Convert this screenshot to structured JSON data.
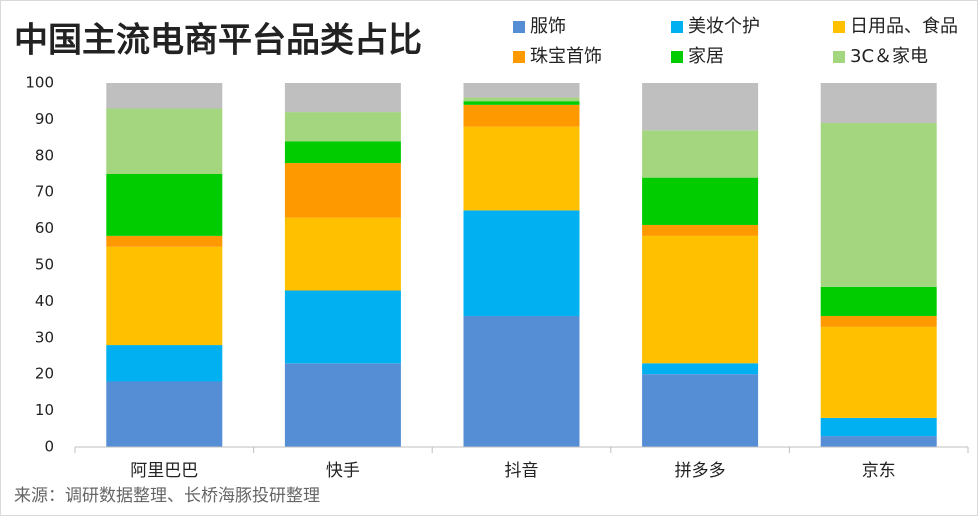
{
  "chart_data": {
    "type": "stacked_bar",
    "title": "中国主流电商平台品类占比",
    "source": "来源：调研数据整理、长桥海豚投研整理",
    "categories": [
      "阿里巴巴",
      "快手",
      "抖音",
      "拼多多",
      "京东"
    ],
    "series": [
      {
        "name": "服饰",
        "color": "#558ed5",
        "values": [
          18,
          23,
          36,
          20,
          3
        ]
      },
      {
        "name": "美妆个护",
        "color": "#00b0f0",
        "values": [
          10,
          20,
          29,
          3,
          5
        ]
      },
      {
        "name": "日用品、食品",
        "color": "#ffc000",
        "values": [
          27,
          20,
          23,
          35,
          25
        ]
      },
      {
        "name": "珠宝首饰",
        "color": "#ff9900",
        "values": [
          3,
          15,
          6,
          3,
          3
        ]
      },
      {
        "name": "家居",
        "color": "#00cc00",
        "values": [
          17,
          6,
          1,
          13,
          8
        ]
      },
      {
        "name": "3C＆家电",
        "color": "#a3d67e",
        "values": [
          18,
          8,
          1,
          13,
          45
        ]
      },
      {
        "color": "#bfbfbf",
        "values": [
          7,
          8,
          4,
          13,
          11
        ]
      }
    ],
    "ylim": [
      0,
      100
    ],
    "yticks": [
      0,
      10,
      20,
      30,
      40,
      50,
      60,
      70,
      80,
      90,
      100
    ],
    "grid": false
  }
}
